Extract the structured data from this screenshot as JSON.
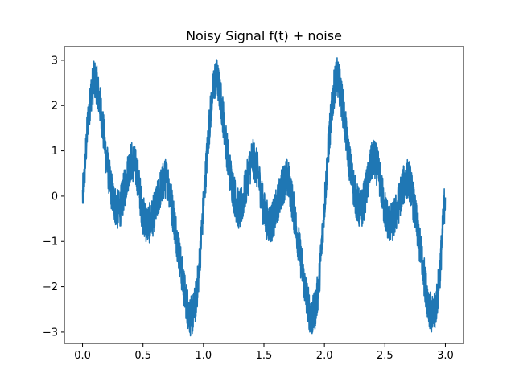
{
  "chart_data": {
    "type": "line",
    "title": "Noisy Signal f(t) + noise",
    "xlabel": "",
    "ylabel": "",
    "xlim": [
      -0.15,
      3.15
    ],
    "ylim": [
      -3.25,
      3.3
    ],
    "x_ticks": [
      0.0,
      0.5,
      1.0,
      1.5,
      2.0,
      2.5,
      3.0
    ],
    "x_tick_labels": [
      "0.0",
      "0.5",
      "1.0",
      "1.5",
      "2.0",
      "2.5",
      "3.0"
    ],
    "y_ticks": [
      -3,
      -2,
      -1,
      0,
      1,
      2,
      3
    ],
    "y_tick_labels": [
      "−3",
      "−2",
      "−1",
      "0",
      "1",
      "2",
      "3"
    ],
    "grid": false,
    "legend": "none",
    "series": [
      {
        "color": "#1f77b4",
        "x": [
          0.0,
          0.05,
          0.1,
          0.15,
          0.2,
          0.25,
          0.3,
          0.35,
          0.4,
          0.45,
          0.5,
          0.55,
          0.6,
          0.65,
          0.7,
          0.75,
          0.8,
          0.85,
          0.9,
          0.95,
          1.0,
          1.05,
          1.1,
          1.15,
          1.2,
          1.25,
          1.3,
          1.35,
          1.4,
          1.45,
          1.5,
          1.55,
          1.6,
          1.65,
          1.7,
          1.75,
          1.8,
          1.85,
          1.9,
          1.95,
          2.0,
          2.05,
          2.1,
          2.15,
          2.2,
          2.25,
          2.3,
          2.35,
          2.4,
          2.45,
          2.5,
          2.55,
          2.6,
          2.65,
          2.7,
          2.75,
          2.8,
          2.85,
          2.9,
          2.95,
          3.0
        ],
        "y": [
          0.0,
          1.8,
          2.55,
          1.9,
          0.8,
          0.0,
          -0.3,
          0.2,
          0.75,
          0.5,
          -0.4,
          -0.6,
          -0.3,
          0.2,
          0.35,
          -0.4,
          -1.3,
          -2.2,
          -2.65,
          -2.0,
          -0.2,
          1.6,
          2.6,
          2.0,
          0.9,
          0.1,
          -0.3,
          0.2,
          0.8,
          0.5,
          -0.3,
          -0.6,
          -0.3,
          0.2,
          0.35,
          -0.4,
          -1.3,
          -2.2,
          -2.65,
          -2.0,
          -0.2,
          1.6,
          2.6,
          2.0,
          0.9,
          0.1,
          -0.3,
          0.2,
          0.8,
          0.5,
          -0.3,
          -0.6,
          -0.3,
          0.2,
          0.35,
          -0.4,
          -1.3,
          -2.2,
          -2.65,
          -1.8,
          0.0
        ],
        "noise_amplitude": 0.45
      }
    ]
  }
}
